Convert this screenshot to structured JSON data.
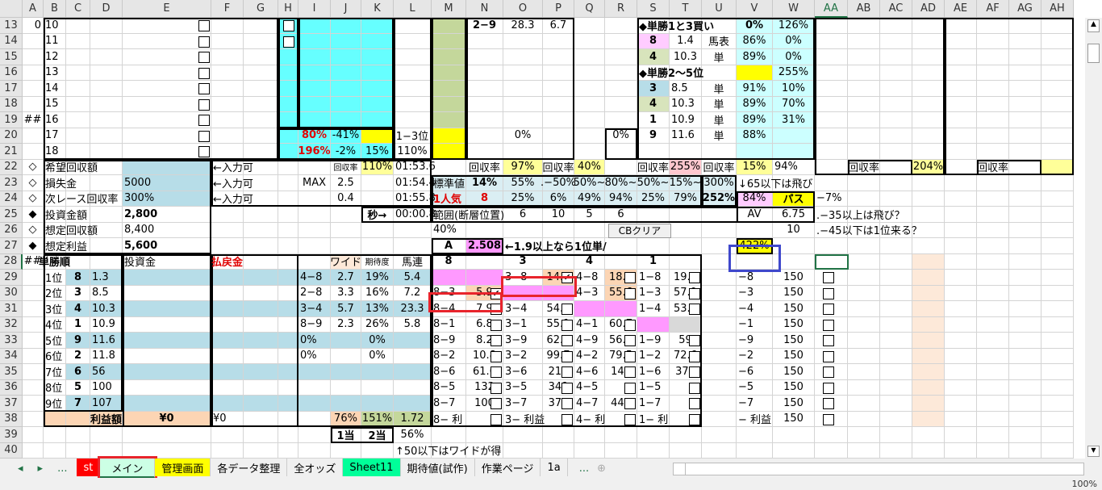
{
  "columns": [
    "A",
    "B",
    "C",
    "D",
    "E",
    "F",
    "G",
    "H",
    "I",
    "J",
    "K",
    "L",
    "M",
    "N",
    "O",
    "P",
    "Q",
    "R",
    "S",
    "T",
    "U",
    "V",
    "W",
    "AA",
    "AB",
    "AC",
    "AD",
    "AE",
    "AF",
    "AG",
    "AH"
  ],
  "rows": [
    13,
    14,
    15,
    16,
    17,
    18,
    19,
    20,
    21,
    22,
    23,
    24,
    25,
    26,
    27,
    28,
    29,
    30,
    31,
    32,
    33,
    34,
    35,
    36,
    37,
    38,
    39,
    40
  ],
  "cells": {
    "A13": "0",
    "B13": "10",
    "B14": "11",
    "B15": "12",
    "B16": "13",
    "B17": "14",
    "B18": "15",
    "B19": "16",
    "B20": "17",
    "B21": "18",
    "A19": "##",
    "N13": "2−9",
    "O13": "28.3",
    "P13": "6.7",
    "S13": "◆単勝1と3買い",
    "V13": "0%",
    "W13": "126%",
    "S14": "8",
    "T14": "1.4",
    "U14": "馬表",
    "V14": "86%",
    "W14": "0%",
    "S15": "4",
    "T15": "10.3",
    "U15": "単",
    "V15": "89%",
    "W15": "0%",
    "S16": "◆単勝2〜5位",
    "W16": "255%",
    "S17": "3",
    "T17": "8.5",
    "U17": "単",
    "V17": "91%",
    "W17": "10%",
    "S18": "4",
    "T18": "10.3",
    "U18": "単",
    "V18": "89%",
    "W18": "70%",
    "S19": "1",
    "T19": "10.9",
    "U19": "単",
    "V19": "89%",
    "W19": "31%",
    "S20": "9",
    "T20": "11.6",
    "U20": "単",
    "V20": "88%",
    "I20": "80%",
    "J20": "-41%",
    "L20": "1−3位",
    "O20": "0%",
    "R20": "0%",
    "I21": "196%",
    "J21": "-2%",
    "K21": "15%",
    "L21": "110%",
    "A22": "◇",
    "B22": "希望回収額",
    "F22": "←入力可",
    "J22": "回収率",
    "K22": "110%",
    "L22": "01:53.6",
    "N22": "回収率",
    "O22": "97%",
    "P22": "回収率",
    "Q22": "40%",
    "S22": "回収率",
    "T22": "255%",
    "U22": "回収率",
    "V22": "15%",
    "W22": "94%",
    "AB22": "回収率",
    "AD22": "204%",
    "AF22": "回収率",
    "A23": "◇",
    "B23": "損失金",
    "E23": "5000",
    "F23": "←入力可",
    "I23": "MAX",
    "J23": "2.5",
    "L23": "01:54.4",
    "M23": "標準値",
    "N23": "14%",
    "O23": "55%",
    "P23": ".−50%",
    "Q23": "50%~",
    "R23": "80%~",
    "S23": "50%~",
    "T23": "15%~",
    "U23": "300%",
    "V23": "↓65以下は飛び",
    "A24": "◇",
    "B24": "次レース回収率",
    "E24": "300%",
    "F24": "←入力可",
    "J24": "0.4",
    "L24": "01:55.8",
    "M24": "1人気",
    "N24": "8",
    "O24": "25%",
    "P24": "6%",
    "Q24": "49%",
    "R24": "94%",
    "S24": "25%",
    "T24": "79%",
    "U24": "252%",
    "V24": "84%",
    "W24": "パス",
    "AA24": "−7%",
    "A25": "◆",
    "B25": "投資金額",
    "E25": "2,800",
    "K25": "秒→",
    "L25": "00:00.8",
    "M25": "範囲(断層位置)",
    "O25": "6",
    "P25": "10",
    "Q25": "5",
    "R25": "6",
    "V25": "AV",
    "W25": "6.75",
    "AA25": ".−35以上は飛び？",
    "A26": "◇",
    "B26": "想定回収額",
    "E26": "8,400",
    "M26": "40%",
    "W26": "10",
    "AA26": ".−45以下は1位来る？",
    "A27": "◆",
    "B27": "想定利益",
    "E27": "5,600",
    "M27": "A",
    "N27": "2.508",
    "O27": "←1.9以上なら1位単/",
    "V27": "422%",
    "A28": "##",
    "B28": "単勝順",
    "E28": "投資金",
    "F28": "払戻金",
    "J28": "ワイド",
    "K28": "期待度",
    "L28": "馬連",
    "M28": "8",
    "O28": "3",
    "Q28": "4",
    "S28": "1",
    "B29": "1位",
    "C29": "8",
    "D29": "1.3",
    "B30": "2位",
    "C30": "3",
    "D30": "8.5",
    "B31": "3位",
    "C31": "4",
    "D31": "10.3",
    "B32": "4位",
    "C32": "1",
    "D32": "10.9",
    "B33": "5位",
    "C33": "9",
    "D33": "11.6",
    "B34": "6位",
    "C34": "2",
    "D34": "11.8",
    "B35": "7位",
    "C35": "6",
    "D35": "56",
    "B36": "8位",
    "C36": "5",
    "D36": "100",
    "B37": "9位",
    "C37": "7",
    "D37": "107",
    "I29": "4−8",
    "J29": "2.7",
    "K29": "19%",
    "L29": "5.4",
    "I30": "2−8",
    "J30": "3.3",
    "K30": "16%",
    "L30": "7.2",
    "I31": "3−4",
    "J31": "5.7",
    "K31": "13%",
    "L31": "23.3",
    "I32": "8−9",
    "J32": "2.3",
    "K32": "26%",
    "L32": "5.8",
    "I33": "0%",
    "K33": "0%",
    "I34": "0%",
    "K34": "0%",
    "M30": "8−3",
    "N30": "5.9",
    "M31": "8−4",
    "N31": "7.9",
    "M32": "8−1",
    "N32": "6.8",
    "M33": "8−9",
    "N33": "8.2",
    "M34": "8−2",
    "N34": "10.8",
    "M35": "8−6",
    "N35": "61.6",
    "M36": "8−5",
    "N36": "132",
    "M37": "8−7",
    "N37": "100",
    "M38": "8− 利",
    "O29": "3−8",
    "P29": "14.8",
    "O31": "3−4",
    "P31": "54.1",
    "O32": "3−1",
    "P32": "55.1",
    "O33": "3−9",
    "P33": "62.2",
    "O34": "3−2",
    "P34": "99.7",
    "O35": "3−6",
    "P35": "217",
    "O36": "3−5",
    "P36": "349",
    "O37": "3−7",
    "P37": "370",
    "O38": "3− 利益",
    "Q29": "4−8",
    "R29": "18.2",
    "Q30": "4−3",
    "R30": "55.6",
    "Q32": "4−1",
    "R32": "60.7",
    "Q33": "4−9",
    "R33": "56.1",
    "Q34": "4−2",
    "R34": "79.5",
    "Q35": "4−6",
    "R35": "144",
    "Q36": "4−5",
    "Q37": "4−7",
    "R37": "449",
    "Q38": "4− 利",
    "S29": "1−8",
    "T29": "19.7",
    "S30": "1−3",
    "T30": "57.9",
    "S31": "1−4",
    "T31": "53.9",
    "S33": "1−9",
    "T33": "59",
    "S34": "1−2",
    "T34": "72.6",
    "S35": "1−6",
    "T35": "370",
    "S36": "1−5",
    "S37": "1−7",
    "S38": "1− 利",
    "V29": "−8",
    "W29": "150",
    "V30": "−3",
    "W30": "150",
    "V31": "−4",
    "W31": "150",
    "V32": "−1",
    "W32": "150",
    "V33": "−9",
    "W33": "150",
    "V34": "−2",
    "W34": "150",
    "V35": "−6",
    "W35": "150",
    "V36": "−5",
    "W36": "150",
    "V37": "−7",
    "W37": "150",
    "V38": "− 利益",
    "W38": "150",
    "D38": "利益額",
    "E38": "¥0",
    "F38": "¥0",
    "J38": "76%",
    "K38": "151%",
    "L38": "1.72",
    "J39": "1当",
    "K39": "2当",
    "L39": "56%",
    "L40": "↑50以下はワイドが得"
  },
  "checked": [
    "N30",
    "P29"
  ],
  "buttons": {
    "cb_clear": "CBクリア"
  },
  "tabs": [
    {
      "label": "st",
      "bg": "#ff0000",
      "color": "#ffffff"
    },
    {
      "label": "メイン",
      "bg": "#ccffe5",
      "color": "#000000",
      "active": true
    },
    {
      "label": "管理画面",
      "bg": "#ffff00",
      "color": "#000000"
    },
    {
      "label": "各データ整理",
      "bg": "",
      "color": "#000000"
    },
    {
      "label": "全オッズ",
      "bg": "",
      "color": "#000000"
    },
    {
      "label": "Sheet11",
      "bg": "#00ff99",
      "color": "#000000"
    },
    {
      "label": "期待値(試作)",
      "bg": "",
      "color": "#000000"
    },
    {
      "label": "作業ページ",
      "bg": "",
      "color": "#000000"
    },
    {
      "label": "1a",
      "bg": "",
      "color": "#000000"
    }
  ],
  "tab_nav": {
    "prev": "◂",
    "next": "▸",
    "more": "...",
    "more2": "...",
    "add": "⊕"
  },
  "status": {
    "zoom": "100%"
  },
  "colors": {
    "cyan": "#66ffff",
    "lightcyan": "#ccffff",
    "yellow": "#ffff00",
    "paleyellow": "#ffff99",
    "lightblue": "#b7dde8",
    "pink": "#ff99ff",
    "peach": "#fcd5b4",
    "olive": "#c4d79b",
    "highlight_red": "#e8242c",
    "highlight_blue": "#3f48cc"
  }
}
